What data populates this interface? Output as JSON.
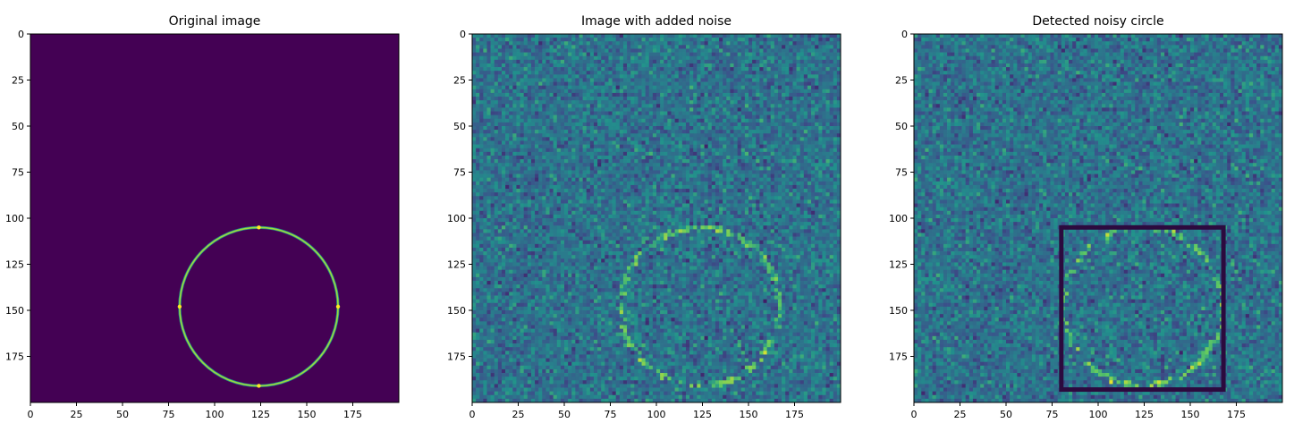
{
  "chart_data": [
    {
      "type": "heatmap",
      "title": "Original image",
      "xlim": [
        0,
        200
      ],
      "ylim": [
        0,
        200
      ],
      "xticks": [
        0,
        25,
        50,
        75,
        100,
        125,
        150,
        175
      ],
      "yticks": [
        0,
        25,
        50,
        75,
        100,
        125,
        150,
        175
      ],
      "colormap": "viridis",
      "background": "#440154",
      "circle": {
        "cx": 124,
        "cy": 148,
        "r": 43
      },
      "noise": false
    },
    {
      "type": "heatmap",
      "title": "Image with added noise",
      "xlim": [
        0,
        200
      ],
      "ylim": [
        0,
        200
      ],
      "xticks": [
        0,
        25,
        50,
        75,
        100,
        125,
        150,
        175
      ],
      "yticks": [
        0,
        25,
        50,
        75,
        100,
        125,
        150,
        175
      ],
      "colormap": "viridis",
      "circle": {
        "cx": 124,
        "cy": 148,
        "r": 43
      },
      "noise": true
    },
    {
      "type": "heatmap",
      "title": "Detected noisy circle",
      "xlim": [
        0,
        200
      ],
      "ylim": [
        0,
        200
      ],
      "xticks": [
        0,
        25,
        50,
        75,
        100,
        125,
        150,
        175
      ],
      "yticks": [
        0,
        25,
        50,
        75,
        100,
        125,
        150,
        175
      ],
      "colormap": "viridis",
      "circle": {
        "cx": 124,
        "cy": 148,
        "r": 43
      },
      "noise": true,
      "detection_box": {
        "x0": 80,
        "y0": 105,
        "x1": 168,
        "y1": 193,
        "color": "#2c0a3e"
      }
    }
  ],
  "colors": {
    "viridis_dark": "#440154",
    "viridis_yellow": "#fde725",
    "axis": "#000000"
  }
}
